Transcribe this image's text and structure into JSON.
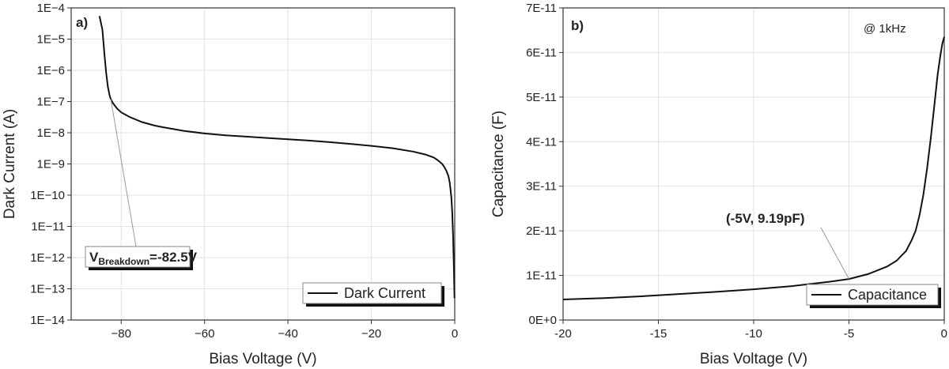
{
  "chart_data": [
    {
      "type": "line",
      "panel": "a)",
      "xlabel": "Bias Voltage (V)",
      "ylabel": "Dark Current (A)",
      "xlim": [
        -92,
        0
      ],
      "ylim": [
        1e-14,
        0.0001
      ],
      "yscale": "log",
      "grid": true,
      "legend_position": "bottom-right",
      "xticks": [
        -80,
        -60,
        -40,
        -20,
        0
      ],
      "xtick_labels": [
        "−80",
        "−60",
        "−40",
        "−20",
        "0"
      ],
      "yticks": [
        1e-14,
        1e-13,
        1e-12,
        1e-11,
        1e-10,
        1e-09,
        1e-08,
        1e-07,
        1e-06,
        1e-05,
        0.0001
      ],
      "ytick_labels": [
        "1E−14",
        "1E−13",
        "1E−12",
        "1E−11",
        "1E−10",
        "1E−9",
        "1E−8",
        "1E−7",
        "1E−6",
        "1E−5",
        "1E−4"
      ],
      "series": [
        {
          "name": "Dark Current",
          "x": [
            -85.2,
            -84.5,
            -84,
            -83.6,
            -83.2,
            -82.8,
            -82.5,
            -82,
            -81,
            -80,
            -78,
            -75,
            -72,
            -70,
            -65,
            -60,
            -55,
            -50,
            -45,
            -40,
            -35,
            -30,
            -25,
            -20,
            -15,
            -10,
            -7,
            -5,
            -4,
            -3,
            -2.5,
            -2,
            -1.5,
            -1.2,
            -1,
            -0.8,
            -0.6,
            -0.4,
            -0.2,
            -0.05
          ],
          "y": [
            5.5e-05,
            2e-05,
            3e-06,
            8e-07,
            3e-07,
            1.6e-07,
            1.2e-07,
            9e-08,
            6e-08,
            4.5e-08,
            3.2e-08,
            2.2e-08,
            1.7e-08,
            1.5e-08,
            1.15e-08,
            9.5e-09,
            8.3e-09,
            7.5e-09,
            6.8e-09,
            6.2e-09,
            5.6e-09,
            5e-09,
            4.4e-09,
            3.8e-09,
            3.2e-09,
            2.5e-09,
            2e-09,
            1.6e-09,
            1.3e-09,
            1e-09,
            8e-10,
            6e-10,
            4e-10,
            2.5e-10,
            1.5e-10,
            8e-11,
            3e-11,
            5e-12,
            5e-13,
            5e-14
          ]
        }
      ],
      "annotation": {
        "text_main": "V",
        "text_sub": "Breakdown",
        "text_rest": "=-82.5V",
        "point": {
          "x": -82.5,
          "y": 1.2e-07
        }
      }
    },
    {
      "type": "line",
      "panel": "b)",
      "xlabel": "Bias Voltage (V)",
      "ylabel": "Capacitance (F)",
      "xlim": [
        -20,
        0
      ],
      "ylim": [
        0,
        7e-11
      ],
      "yscale": "linear",
      "grid": true,
      "legend_position": "bottom-right",
      "xticks": [
        -20,
        -15,
        -10,
        -5,
        0
      ],
      "xtick_labels": [
        "-20",
        "-15",
        "-10",
        "-5",
        "0"
      ],
      "yticks": [
        0,
        1e-11,
        2e-11,
        3e-11,
        4e-11,
        5e-11,
        6e-11,
        7e-11
      ],
      "ytick_labels": [
        "0E+0",
        "1E-11",
        "2E-11",
        "3E-11",
        "4E-11",
        "5E-11",
        "6E-11",
        "7E-11"
      ],
      "series": [
        {
          "name": "Capacitance",
          "x": [
            -20,
            -18,
            -16,
            -14,
            -12,
            -10,
            -8,
            -6,
            -5,
            -4,
            -3,
            -2.5,
            -2,
            -1.7,
            -1.5,
            -1.3,
            -1.1,
            -0.9,
            -0.7,
            -0.5,
            -0.35,
            -0.2,
            -0.1,
            0
          ],
          "y": [
            4.6e-12,
            4.9e-12,
            5.3e-12,
            5.8e-12,
            6.3e-12,
            6.9e-12,
            7.6e-12,
            8.6e-12,
            9.19e-12,
            1.03e-11,
            1.2e-11,
            1.33e-11,
            1.55e-11,
            1.8e-11,
            2e-11,
            2.35e-11,
            2.8e-11,
            3.4e-11,
            4.1e-11,
            4.9e-11,
            5.5e-11,
            5.95e-11,
            6.2e-11,
            6.35e-11
          ]
        }
      ],
      "annotation": {
        "text": "(-5V, 9.19pF)",
        "point": {
          "x": -5,
          "y": 9.19e-12
        }
      },
      "note": "@ 1kHz"
    }
  ]
}
